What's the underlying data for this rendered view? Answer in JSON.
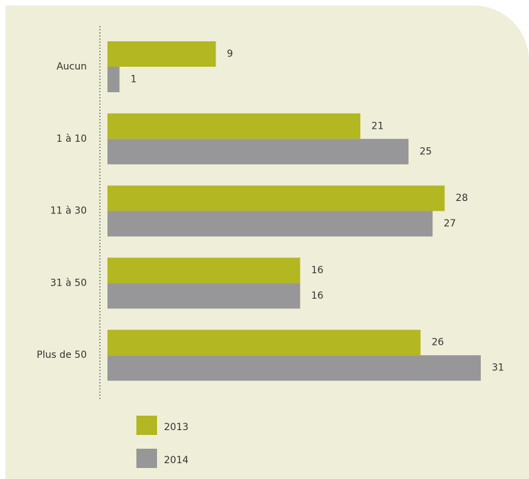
{
  "chart_data": {
    "type": "hbar",
    "categories": [
      "Aucun",
      "1 à 10",
      "11 à 30",
      "31 à 50",
      "Plus de 50"
    ],
    "series": [
      {
        "name": "2013",
        "color": "#b2b722",
        "values": [
          9,
          21,
          28,
          16,
          26
        ]
      },
      {
        "name": "2014",
        "color": "#97979a",
        "values": [
          1,
          25,
          27,
          16,
          31
        ]
      }
    ]
  }
}
